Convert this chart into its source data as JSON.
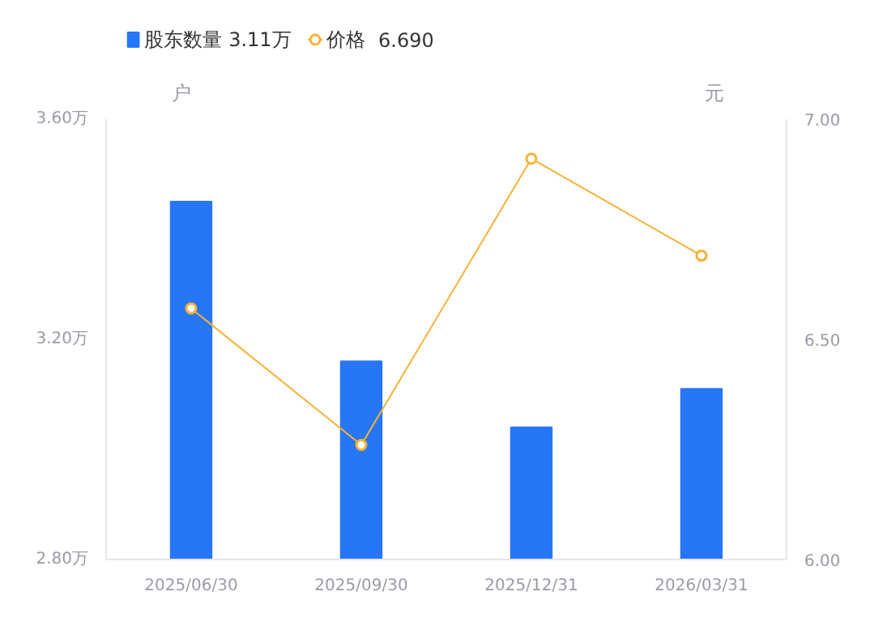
{
  "chart_data": {
    "type": "bar",
    "categories": [
      "2025/06/30",
      "2025/09/30",
      "2025/12/31",
      "2026/03/31"
    ],
    "ylabel": "户",
    "y2label": "元",
    "series": [
      {
        "name": "股东数量",
        "color": "#2776f6",
        "values": [
          3.45,
          3.16,
          3.04,
          3.11
        ]
      },
      {
        "name": "价格",
        "type": "line",
        "axis": "y2",
        "color": "#f5b335",
        "marker": "circle",
        "values": [
          6.57,
          6.26,
          6.91,
          6.69
        ]
      }
    ],
    "annotations": [
      "3.11万",
      "6.690"
    ],
    "ylim": [
      2.8,
      3.6
    ],
    "yticks": [
      {
        "value": 2.8,
        "label": "2.80万"
      },
      {
        "value": 3.2,
        "label": "3.20万"
      },
      {
        "value": 3.6,
        "label": "3.60万"
      }
    ],
    "y2lim": [
      6.0,
      7.0
    ],
    "y2ticks": [
      {
        "value": 6.0,
        "label": "6.00"
      },
      {
        "value": 6.5,
        "label": "6.50"
      },
      {
        "value": 7.0,
        "label": "7.00"
      }
    ],
    "legend": "top left",
    "grid": false
  }
}
